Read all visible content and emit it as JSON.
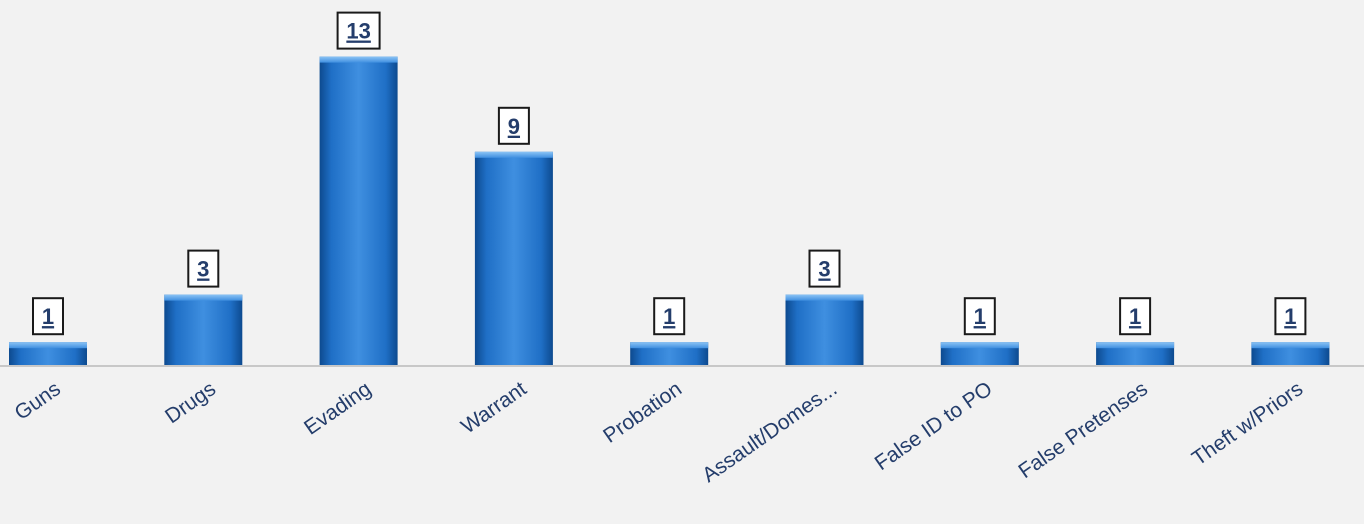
{
  "chart_data": {
    "type": "bar",
    "title": "",
    "xlabel": "",
    "ylabel": "",
    "categories": [
      "Guns",
      "Drugs",
      "Evading",
      "Warrant",
      "Probation",
      "Assault/Domes...",
      "False ID to PO",
      "False Pretenses",
      "Theft w/Priors"
    ],
    "values": [
      1,
      3,
      13,
      9,
      1,
      3,
      1,
      1,
      1
    ],
    "ylim": [
      0,
      13.5
    ],
    "grid": false,
    "legend": "none",
    "data_labels": true
  },
  "colors": {
    "bar": "#1f6fc6",
    "bar_light": "#5aa6ec",
    "bar_dark": "#0d4a8f",
    "text": "#243d6b",
    "axis": "#c8c8c8",
    "background": "#f2f2f2"
  }
}
